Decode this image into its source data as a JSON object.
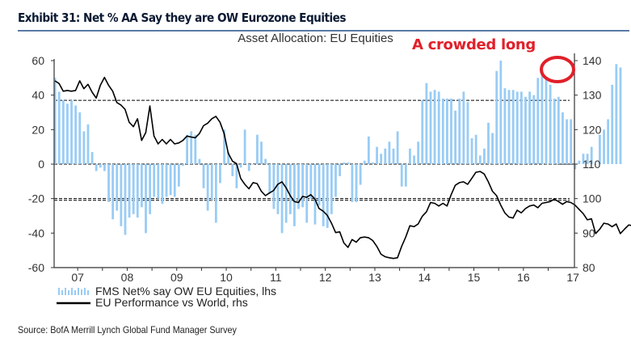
{
  "header": {
    "title": "Exhibit 31: Net % AA Say they are OW Eurozone Equities",
    "subtitle": "Asset Allocation: EU Equities",
    "annotation": "A crowded long"
  },
  "source": "Source: BofA Merrill Lynch Global Fund Manager Survey",
  "colors": {
    "bars": "#99ccf5",
    "line": "#000000",
    "annotation": "#e0202a",
    "title_rule": "#5a7aa6"
  },
  "chart_data": {
    "type": "bar",
    "title": "Asset Allocation: EU Equities",
    "xlabel": "",
    "ylabel": "",
    "x_tick_labels": [
      "07",
      "08",
      "09",
      "10",
      "11",
      "12",
      "13",
      "14",
      "15",
      "16",
      "17"
    ],
    "y_left": {
      "ticks": [
        60,
        40,
        20,
        0,
        -20,
        -40,
        -60
      ],
      "ylim": [
        -60,
        60
      ]
    },
    "y_right": {
      "ticks": [
        140,
        130,
        120,
        110,
        100,
        90,
        80
      ],
      "ylim": [
        80,
        140
      ]
    },
    "reference_lines_lhs": [
      37,
      0,
      -20
    ],
    "reference_lines_rhs": [
      99.5
    ],
    "legend": {
      "placement": "bottom-left",
      "entries": [
        "FMS Net% say OW EU Equities, lhs",
        "EU Performance vs World, rhs"
      ]
    },
    "series": [
      {
        "name": "FMS Net% say OW EU Equities, lhs",
        "axis": "left",
        "type": "bar",
        "start": "2007-03",
        "frequency": "monthly",
        "values": [
          50,
          42,
          37,
          35,
          37,
          34,
          30,
          19,
          23,
          7,
          -4,
          -2,
          -4,
          -22,
          -32,
          -27,
          -36,
          -41,
          -31,
          -29,
          -31,
          -25,
          -40,
          -29,
          -19,
          -20,
          -23,
          -19,
          -18,
          -19,
          -13,
          -1,
          17,
          19,
          17,
          3,
          -14,
          -27,
          -21,
          -34,
          -11,
          20,
          7,
          -7,
          -14,
          -2,
          20,
          -4,
          0,
          17,
          13,
          3,
          -17,
          -26,
          -29,
          -40,
          -34,
          -29,
          -36,
          -26,
          -25,
          -34,
          -20,
          -35,
          -24,
          -36,
          -37,
          -29,
          -19,
          -7,
          1,
          1,
          -22,
          -22,
          -12,
          2,
          16,
          1,
          10,
          6,
          9,
          13,
          9,
          19,
          -13,
          -13,
          9,
          5,
          13,
          37,
          47,
          42,
          43,
          42,
          38,
          38,
          38,
          31,
          38,
          42,
          36,
          15,
          17,
          5,
          9,
          24,
          18,
          54,
          60,
          44,
          43,
          43,
          42,
          42,
          39,
          42,
          40,
          50,
          55,
          50,
          46,
          38,
          39,
          30,
          26,
          26,
          -3,
          2,
          6,
          6,
          10,
          0,
          17,
          20,
          26,
          46,
          58,
          56
        ]
      },
      {
        "name": "EU Performance vs World, rhs",
        "axis": "right",
        "type": "line",
        "start": "2007-01",
        "frequency": "monthly",
        "values": [
          134,
          133.5,
          131,
          131.5,
          131,
          131.5,
          134,
          132,
          133,
          131,
          129,
          133,
          135,
          133,
          131,
          128,
          127,
          126,
          122,
          121,
          123,
          117,
          119,
          127,
          118,
          116,
          117,
          116,
          117,
          116,
          116,
          117,
          118,
          118,
          117.5,
          119,
          121,
          122,
          123,
          124,
          122,
          119,
          113,
          111,
          110,
          106,
          104,
          103,
          104.5,
          104.5,
          102,
          101,
          101.5,
          102.5,
          104,
          105,
          103,
          101,
          99,
          99,
          100.5,
          100.5,
          101,
          100,
          97,
          96.5,
          95,
          93,
          90,
          90.5,
          87,
          86,
          88,
          87.5,
          88.5,
          89,
          88.5,
          88,
          86,
          84,
          83,
          83,
          82.5,
          83,
          86,
          89,
          92,
          92,
          92.5,
          95,
          96,
          99,
          98.5,
          98,
          98.5,
          98,
          101,
          104,
          104.5,
          105,
          104,
          106,
          107.5,
          108,
          107,
          105,
          102,
          101,
          98,
          96,
          94.5,
          94.5,
          96.5,
          96,
          97,
          98,
          98,
          97.5,
          98.5,
          99,
          99,
          100,
          99,
          98.5,
          99,
          99,
          98,
          97,
          95.5,
          94,
          94,
          90,
          91,
          93,
          92.5,
          92,
          92.5,
          90,
          91,
          92.5,
          92,
          91,
          90.5,
          94,
          95,
          99,
          100
        ]
      }
    ]
  }
}
